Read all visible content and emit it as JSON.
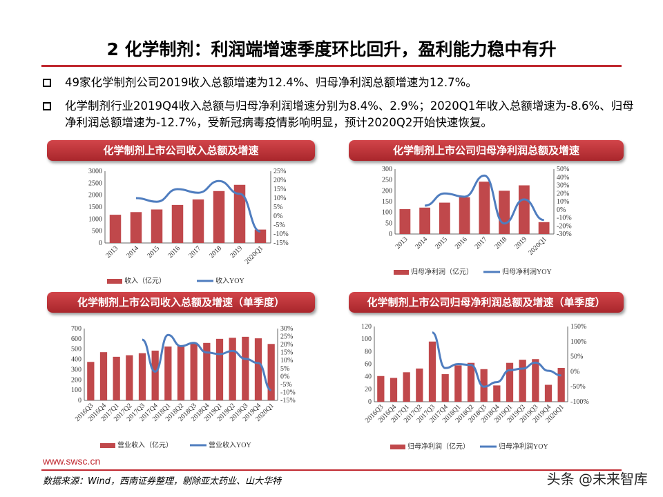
{
  "title": "2 化学制剂：利润端增速季度环比回升，盈利能力稳中有升",
  "bullets": [
    "49家化学制剂公司2019收入总额增速为12.4%、归母净利润总额增速为12.7%。",
    "化学制剂行业2019Q4收入总额与归母净利润增速分别为8.4%、2.9%；2020Q1年收入总额增速为-8.6%、归母净利润总额增速为-12.7%，受新冠病毒疫情影响明显，预计2020Q2开始快速恢复。"
  ],
  "footer": {
    "site": "www.swsc.cn",
    "source": "数据来源：Wind，西南证券整理，剔除亚太药业、山大华特",
    "watermark": "头条 @未来智库"
  },
  "colors": {
    "bar": "#c0484b",
    "line": "#4f7dbf",
    "accent": "#c0282f"
  },
  "chart_data": [
    {
      "type": "bar+line",
      "title": "化学制剂上市公司收入总额及增速",
      "categories": [
        "2013",
        "2014",
        "2015",
        "2016",
        "2017",
        "2018",
        "2019",
        "2020Q1"
      ],
      "series": [
        {
          "name": "收入（亿元）",
          "type": "bar",
          "axis": "left",
          "values": [
            1180,
            1290,
            1400,
            1590,
            1820,
            2170,
            2430,
            560
          ]
        },
        {
          "name": "收入YOY",
          "type": "line",
          "axis": "right",
          "values": [
            null,
            10,
            8,
            15,
            13,
            19.5,
            12.4,
            -8.6
          ]
        }
      ],
      "ylim": [
        0,
        3000
      ],
      "yticks": [
        0,
        500,
        1000,
        1500,
        2000,
        2500,
        3000
      ],
      "y2lim": [
        -15,
        25
      ],
      "y2ticks": [
        -15,
        -10,
        -5,
        0,
        5,
        10,
        15,
        20,
        25
      ],
      "legend": "bottom",
      "grid": false
    },
    {
      "type": "bar+line",
      "title": "化学制剂上市公司归母净利润总额及增速",
      "categories": [
        "2013",
        "2014",
        "2015",
        "2016",
        "2017",
        "2018",
        "2019",
        "2020Q1"
      ],
      "series": [
        {
          "name": "归母净利润（亿元）",
          "type": "bar",
          "axis": "left",
          "values": [
            115,
            122,
            145,
            170,
            242,
            200,
            225,
            55
          ]
        },
        {
          "name": "归母净利润YOY",
          "type": "line",
          "axis": "right",
          "values": [
            null,
            5,
            20,
            16,
            42,
            -17,
            12.7,
            -12.7
          ]
        }
      ],
      "ylim": [
        0,
        300
      ],
      "yticks": [
        0,
        50,
        100,
        150,
        200,
        250,
        300
      ],
      "y2lim": [
        -30,
        50
      ],
      "y2ticks": [
        -30,
        -20,
        -10,
        0,
        10,
        20,
        30,
        40,
        50
      ],
      "legend": "bottom",
      "grid": false
    },
    {
      "type": "bar+line",
      "title": "化学制剂上市公司收入总额及增速（单季度）",
      "categories": [
        "2016Q3",
        "2016Q4",
        "2017Q1",
        "2017Q2",
        "2017Q3",
        "2017Q4",
        "2018Q1",
        "2018Q2",
        "2018Q3",
        "2018Q4",
        "2019Q1",
        "2019Q2",
        "2019Q3",
        "2019Q4",
        "2020Q1"
      ],
      "series": [
        {
          "name": "营业收入（亿元）",
          "type": "bar",
          "axis": "left",
          "values": [
            375,
            470,
            425,
            440,
            460,
            485,
            525,
            530,
            560,
            560,
            600,
            610,
            620,
            605,
            550
          ]
        },
        {
          "name": "营业收入YOY",
          "type": "line",
          "axis": "right",
          "values": [
            null,
            null,
            null,
            null,
            23,
            3,
            26,
            19,
            21,
            15,
            14,
            16,
            11,
            8.4,
            -8.6
          ]
        }
      ],
      "ylim": [
        0,
        700
      ],
      "yticks": [
        0,
        100,
        200,
        300,
        400,
        500,
        600,
        700
      ],
      "y2lim": [
        -15,
        30
      ],
      "y2ticks": [
        -15,
        -10,
        -5,
        0,
        5,
        10,
        15,
        20,
        25,
        30
      ],
      "legend": "bottom",
      "grid": false
    },
    {
      "type": "bar+line",
      "title": "化学制剂上市公司归母净利润总额及增速（单季度）",
      "categories": [
        "2016Q3",
        "2016Q4",
        "2017Q1",
        "2017Q2",
        "2017Q3",
        "2017Q4",
        "2018Q1",
        "2018Q2",
        "2018Q3",
        "2018Q4",
        "2019Q1",
        "2019Q2",
        "2019Q3",
        "2019Q4",
        "2020Q1"
      ],
      "series": [
        {
          "name": "归母净利润（亿元）",
          "type": "bar",
          "axis": "left",
          "values": [
            41,
            38,
            47,
            53,
            96,
            44,
            58,
            62,
            52,
            26,
            62,
            67,
            68,
            27,
            54
          ]
        },
        {
          "name": "归母净利润YOY",
          "type": "line",
          "axis": "right",
          "values": [
            null,
            null,
            null,
            null,
            130,
            12,
            25,
            22,
            -50,
            -35,
            5,
            10,
            30,
            2.9,
            -12.7
          ]
        }
      ],
      "ylim": [
        0,
        120
      ],
      "yticks": [
        0,
        20,
        40,
        60,
        80,
        100,
        120
      ],
      "y2lim": [
        -100,
        150
      ],
      "y2ticks": [
        -100,
        -50,
        0,
        50,
        100,
        150
      ],
      "legend": "bottom",
      "grid": false
    }
  ]
}
